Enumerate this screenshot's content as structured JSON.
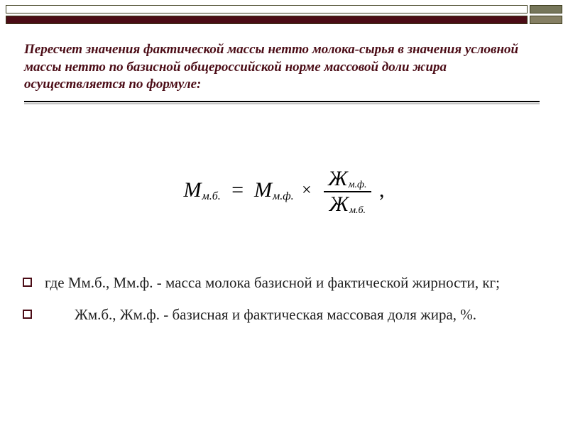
{
  "bars": {
    "row1_long_bg": "#ffffff",
    "row1_short_bg": "#76765a",
    "row2_long_bg": "#4b0c16",
    "row2_short_bg": "#857f63"
  },
  "heading": {
    "text": "Пересчет значения фактической массы нетто молока-сырья в значения условной массы нетто по базисной общероссийской норме массовой доли жира осуществляется по формуле:",
    "color": "#4b0c16"
  },
  "formula": {
    "M_label": "М",
    "sub_mb": "м.б.",
    "sub_mf": "м.ф.",
    "Zh_label": "Ж",
    "frac_num_sub": "м.ф.",
    "frac_den_sub": "м.б."
  },
  "body": {
    "bullet_color": "#4b0c16",
    "items": [
      "где Мм.б., Мм.ф.  - масса молока базисной и фактической жирности, кг;",
      "        Жм.б., Жм.ф. - базисная и фактическая массовая доля жира, %."
    ]
  }
}
